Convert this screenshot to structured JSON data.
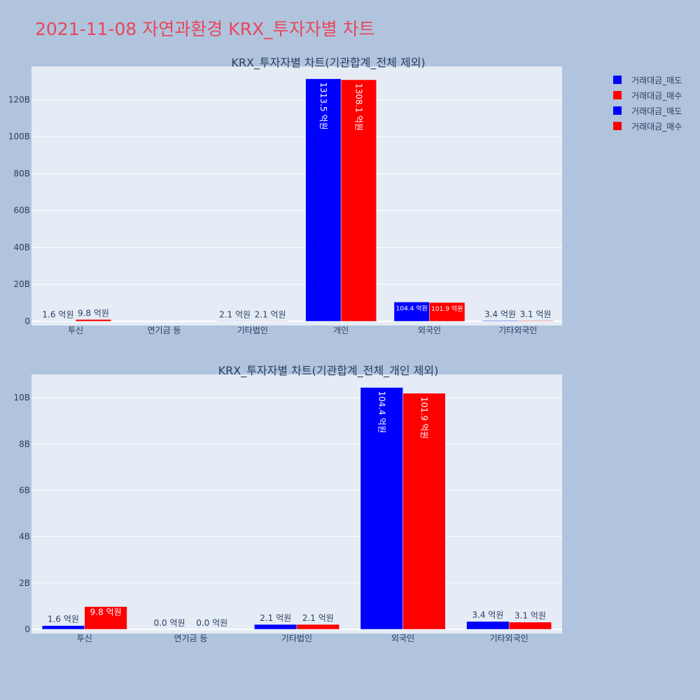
{
  "page": {
    "title": "2021-11-08 자연과환경 KRX_투자자별 차트"
  },
  "legend": [
    {
      "name": "거래대금_매도",
      "color": "#0000ff"
    },
    {
      "name": "거래대금_매수",
      "color": "#ff0000"
    },
    {
      "name": "거래대금_매도",
      "color": "#0000ff"
    },
    {
      "name": "거래대금_매수",
      "color": "#ff0000"
    }
  ],
  "colors": {
    "sell": "#0000ff",
    "buy": "#ff0000",
    "plot_bg": "#e5ecf6",
    "page_bg": "#b0c4de",
    "grid": "#ffffff"
  },
  "chart_data": [
    {
      "type": "bar",
      "title": "KRX_투자자별 차트(기관합계_전체 제외)",
      "categories": [
        "투신",
        "연기금 등",
        "기타법인",
        "개인",
        "외국인",
        "기타외국인"
      ],
      "series": [
        {
          "name": "거래대금_매도",
          "values": [
            0.16,
            0,
            0.21,
            131.35,
            10.44,
            0.34
          ],
          "labels": [
            "1.6 억원",
            "",
            "2.1 억원",
            "1313.5 억원",
            "104.4 억원",
            "3.4 억원"
          ]
        },
        {
          "name": "거래대금_매수",
          "values": [
            0.98,
            0,
            0.21,
            130.81,
            10.19,
            0.31
          ],
          "labels": [
            "9.8 억원",
            "",
            "2.1 억원",
            "1308.1 억원",
            "101.9 억원",
            "3.1 억원"
          ]
        }
      ],
      "yunit": "B",
      "yticks": [
        0,
        20,
        40,
        60,
        80,
        100,
        120
      ],
      "ytick_labels": [
        "0",
        "20B",
        "40B",
        "60B",
        "80B",
        "100B",
        "120B"
      ],
      "ylim": [
        0,
        138
      ],
      "grid": true
    },
    {
      "type": "bar",
      "title": "KRX_투자자별 차트(기관합계_전체_개인 제외)",
      "categories": [
        "투신",
        "연기금 등",
        "기타법인",
        "외국인",
        "기타외국인"
      ],
      "series": [
        {
          "name": "거래대금_매도",
          "values": [
            0.16,
            0,
            0.21,
            10.44,
            0.34
          ],
          "labels": [
            "1.6 억원",
            "0.0 억원",
            "2.1 억원",
            "104.4 억원",
            "3.4 억원"
          ]
        },
        {
          "name": "거래대금_매수",
          "values": [
            0.98,
            0,
            0.21,
            10.19,
            0.31
          ],
          "labels": [
            "9.8 억원",
            "0.0 억원",
            "2.1 억원",
            "101.9 억원",
            "3.1 억원"
          ]
        }
      ],
      "yunit": "B",
      "yticks": [
        0,
        2,
        4,
        6,
        8,
        10
      ],
      "ytick_labels": [
        "0",
        "2B",
        "4B",
        "6B",
        "8B",
        "10B"
      ],
      "ylim": [
        0,
        11
      ],
      "grid": true
    }
  ]
}
